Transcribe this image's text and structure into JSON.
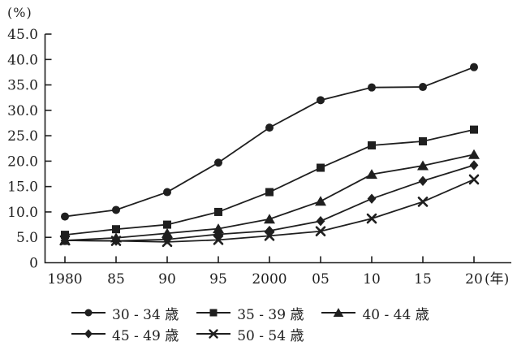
{
  "chart_data": {
    "type": "line",
    "title": "",
    "y_unit_label": "(%)",
    "x_unit_label": "(年)",
    "x_tick_labels": [
      "1980",
      "85",
      "90",
      "95",
      "2000",
      "05",
      "10",
      "15",
      "20"
    ],
    "x_values": [
      1980,
      1985,
      1990,
      1995,
      2000,
      2005,
      2010,
      2015,
      2020
    ],
    "y_tick_labels": [
      "45.0",
      "40.0",
      "35.0",
      "30.0",
      "25.0",
      "20.0",
      "15.0",
      "10.0",
      "5.0",
      "0"
    ],
    "y_tick_values": [
      45,
      40,
      35,
      30,
      25,
      20,
      15,
      10,
      5,
      0
    ],
    "ylim": [
      0,
      45
    ],
    "grid": false,
    "legend_position": "bottom",
    "line_color": "#1f1f1f",
    "series": [
      {
        "name": "30 - 34 歳",
        "marker": "circle",
        "values": [
          9.1,
          10.4,
          13.9,
          19.7,
          26.6,
          32.0,
          34.5,
          34.6,
          38.5
        ]
      },
      {
        "name": "35 - 39 歳",
        "marker": "square",
        "values": [
          5.5,
          6.6,
          7.5,
          10.0,
          13.9,
          18.7,
          23.1,
          23.9,
          26.2
        ]
      },
      {
        "name": "40 - 44 歳",
        "marker": "triangle",
        "values": [
          4.4,
          4.9,
          5.8,
          6.7,
          8.6,
          12.1,
          17.4,
          19.1,
          21.3
        ]
      },
      {
        "name": "45 - 49 歳",
        "marker": "diamond",
        "values": [
          4.4,
          4.3,
          4.6,
          5.6,
          6.3,
          8.2,
          12.6,
          16.1,
          19.2
        ]
      },
      {
        "name": "50 - 54 歳",
        "marker": "x",
        "values": [
          4.4,
          4.3,
          4.1,
          4.5,
          5.3,
          6.2,
          8.7,
          12.0,
          16.4
        ]
      }
    ]
  }
}
